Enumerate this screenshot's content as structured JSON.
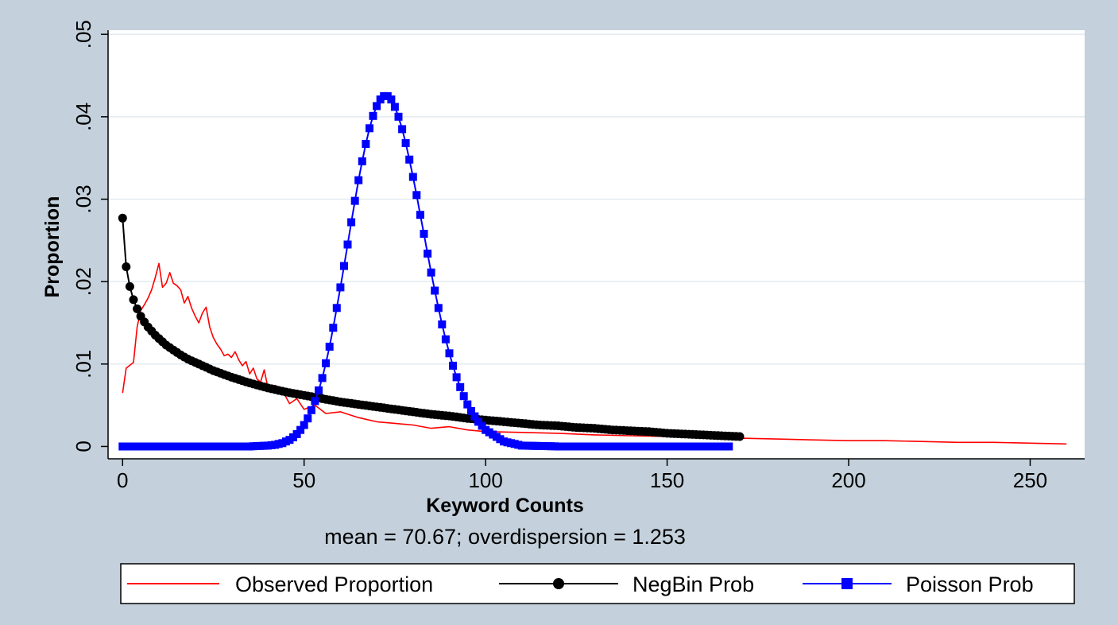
{
  "chart_data": {
    "type": "line",
    "xlabel": "Keyword Counts",
    "ylabel": "Proportion",
    "note": "mean = 70.67; overdispersion = 1.253",
    "xlim": [
      -4,
      265
    ],
    "ylim": [
      -0.0015,
      0.0505
    ],
    "x_ticks": [
      0,
      50,
      100,
      150,
      200,
      250
    ],
    "x_tick_labels": [
      "0",
      "50",
      "100",
      "150",
      "200",
      "250"
    ],
    "y_ticks": [
      0,
      0.01,
      0.02,
      0.03,
      0.04,
      0.05
    ],
    "y_tick_labels": [
      "0",
      ".01",
      ".02",
      ".03",
      ".04",
      ".05"
    ],
    "grid": "horizontal",
    "legend_position": "bottom",
    "colors": {
      "frame": "#c4d1dc",
      "plot_bg": "#ffffff",
      "grid": "#e3ebf0",
      "observed": "#ff0000",
      "negbin": "#000000",
      "poisson": "#0000ff"
    },
    "series": [
      {
        "name": "Observed Proportion",
        "style": "line",
        "color": "#ff0000",
        "x": [
          0,
          1,
          3,
          4,
          5,
          6,
          7,
          8,
          9,
          10,
          11,
          12,
          13,
          14,
          15,
          16,
          17,
          18,
          19,
          20,
          21,
          22,
          23,
          24,
          25,
          26,
          27,
          28,
          29,
          30,
          31,
          32,
          33,
          34,
          35,
          36,
          37,
          38,
          39,
          40,
          42,
          44,
          46,
          48,
          50,
          53,
          56,
          60,
          65,
          70,
          75,
          80,
          85,
          90,
          95,
          100,
          110,
          120,
          130,
          140,
          150,
          160,
          170,
          180,
          190,
          200,
          210,
          220,
          230,
          240,
          250,
          260
        ],
        "y": [
          0.0065,
          0.0095,
          0.0102,
          0.0145,
          0.0165,
          0.0172,
          0.018,
          0.019,
          0.0205,
          0.0222,
          0.0193,
          0.0198,
          0.0211,
          0.0198,
          0.0195,
          0.019,
          0.0174,
          0.0182,
          0.0168,
          0.0158,
          0.015,
          0.0162,
          0.0169,
          0.0145,
          0.0132,
          0.0124,
          0.0118,
          0.011,
          0.0112,
          0.0108,
          0.0115,
          0.0105,
          0.0098,
          0.0103,
          0.0088,
          0.0095,
          0.0082,
          0.0078,
          0.0093,
          0.0072,
          0.0074,
          0.0068,
          0.0052,
          0.0058,
          0.0045,
          0.005,
          0.004,
          0.0042,
          0.0035,
          0.003,
          0.0028,
          0.0026,
          0.0022,
          0.0024,
          0.002,
          0.0018,
          0.0017,
          0.0016,
          0.0014,
          0.0013,
          0.0012,
          0.0011,
          0.001,
          0.0009,
          0.0008,
          0.0007,
          0.0007,
          0.0006,
          0.0005,
          0.0005,
          0.0004,
          0.0003
        ]
      },
      {
        "name": "NegBin Prob",
        "style": "line-markers",
        "marker": "circle",
        "color": "#000000",
        "x": [
          0,
          1,
          2,
          3,
          4,
          5,
          6,
          7,
          8,
          9,
          10,
          12,
          14,
          16,
          18,
          20,
          25,
          30,
          35,
          40,
          45,
          50,
          55,
          60,
          65,
          70,
          75,
          80,
          85,
          90,
          95,
          100,
          105,
          110,
          115,
          120,
          125,
          130,
          135,
          140,
          145,
          150,
          155,
          160,
          165,
          170
        ],
        "y": [
          0.0277,
          0.0218,
          0.0194,
          0.0178,
          0.0167,
          0.0158,
          0.0151,
          0.0145,
          0.014,
          0.0135,
          0.0131,
          0.0123,
          0.0117,
          0.0111,
          0.0106,
          0.0102,
          0.0092,
          0.0084,
          0.0077,
          0.0071,
          0.0066,
          0.0062,
          0.0058,
          0.0054,
          0.0051,
          0.0048,
          0.0045,
          0.0042,
          0.0039,
          0.0037,
          0.0034,
          0.0032,
          0.003,
          0.0028,
          0.0026,
          0.0025,
          0.0023,
          0.0022,
          0.002,
          0.0019,
          0.0018,
          0.0016,
          0.0015,
          0.0014,
          0.0013,
          0.0012
        ]
      },
      {
        "name": "Poisson Prob",
        "style": "line-markers",
        "marker": "square",
        "color": "#0000ff",
        "x": [
          0,
          10,
          20,
          30,
          35,
          40,
          42,
          44,
          46,
          47,
          48,
          49,
          50,
          51,
          52,
          53,
          54,
          55,
          56,
          57,
          58,
          59,
          60,
          61,
          62,
          63,
          64,
          65,
          66,
          67,
          68,
          69,
          70,
          71,
          72,
          73,
          74,
          75,
          76,
          77,
          78,
          79,
          80,
          81,
          82,
          83,
          84,
          85,
          86,
          87,
          88,
          89,
          90,
          91,
          92,
          93,
          94,
          95,
          96,
          98,
          100,
          105,
          110,
          120,
          130,
          140,
          150,
          160,
          167
        ],
        "y": [
          0,
          0,
          0,
          0,
          0,
          0.0001,
          0.0002,
          0.0004,
          0.0008,
          0.0011,
          0.0015,
          0.002,
          0.0026,
          0.0034,
          0.0044,
          0.0055,
          0.0068,
          0.0083,
          0.0101,
          0.0121,
          0.0144,
          0.0168,
          0.0193,
          0.0219,
          0.0245,
          0.0272,
          0.0298,
          0.0323,
          0.0346,
          0.0367,
          0.0386,
          0.0401,
          0.0413,
          0.0421,
          0.0425,
          0.0425,
          0.0421,
          0.0412,
          0.04,
          0.0385,
          0.0368,
          0.0348,
          0.0327,
          0.0305,
          0.0281,
          0.0258,
          0.0234,
          0.0211,
          0.0189,
          0.0168,
          0.0148,
          0.013,
          0.0113,
          0.0098,
          0.0084,
          0.0072,
          0.0061,
          0.0051,
          0.0043,
          0.003,
          0.002,
          0.0006,
          0.0001,
          0,
          0,
          0,
          0,
          0,
          0
        ]
      }
    ]
  }
}
